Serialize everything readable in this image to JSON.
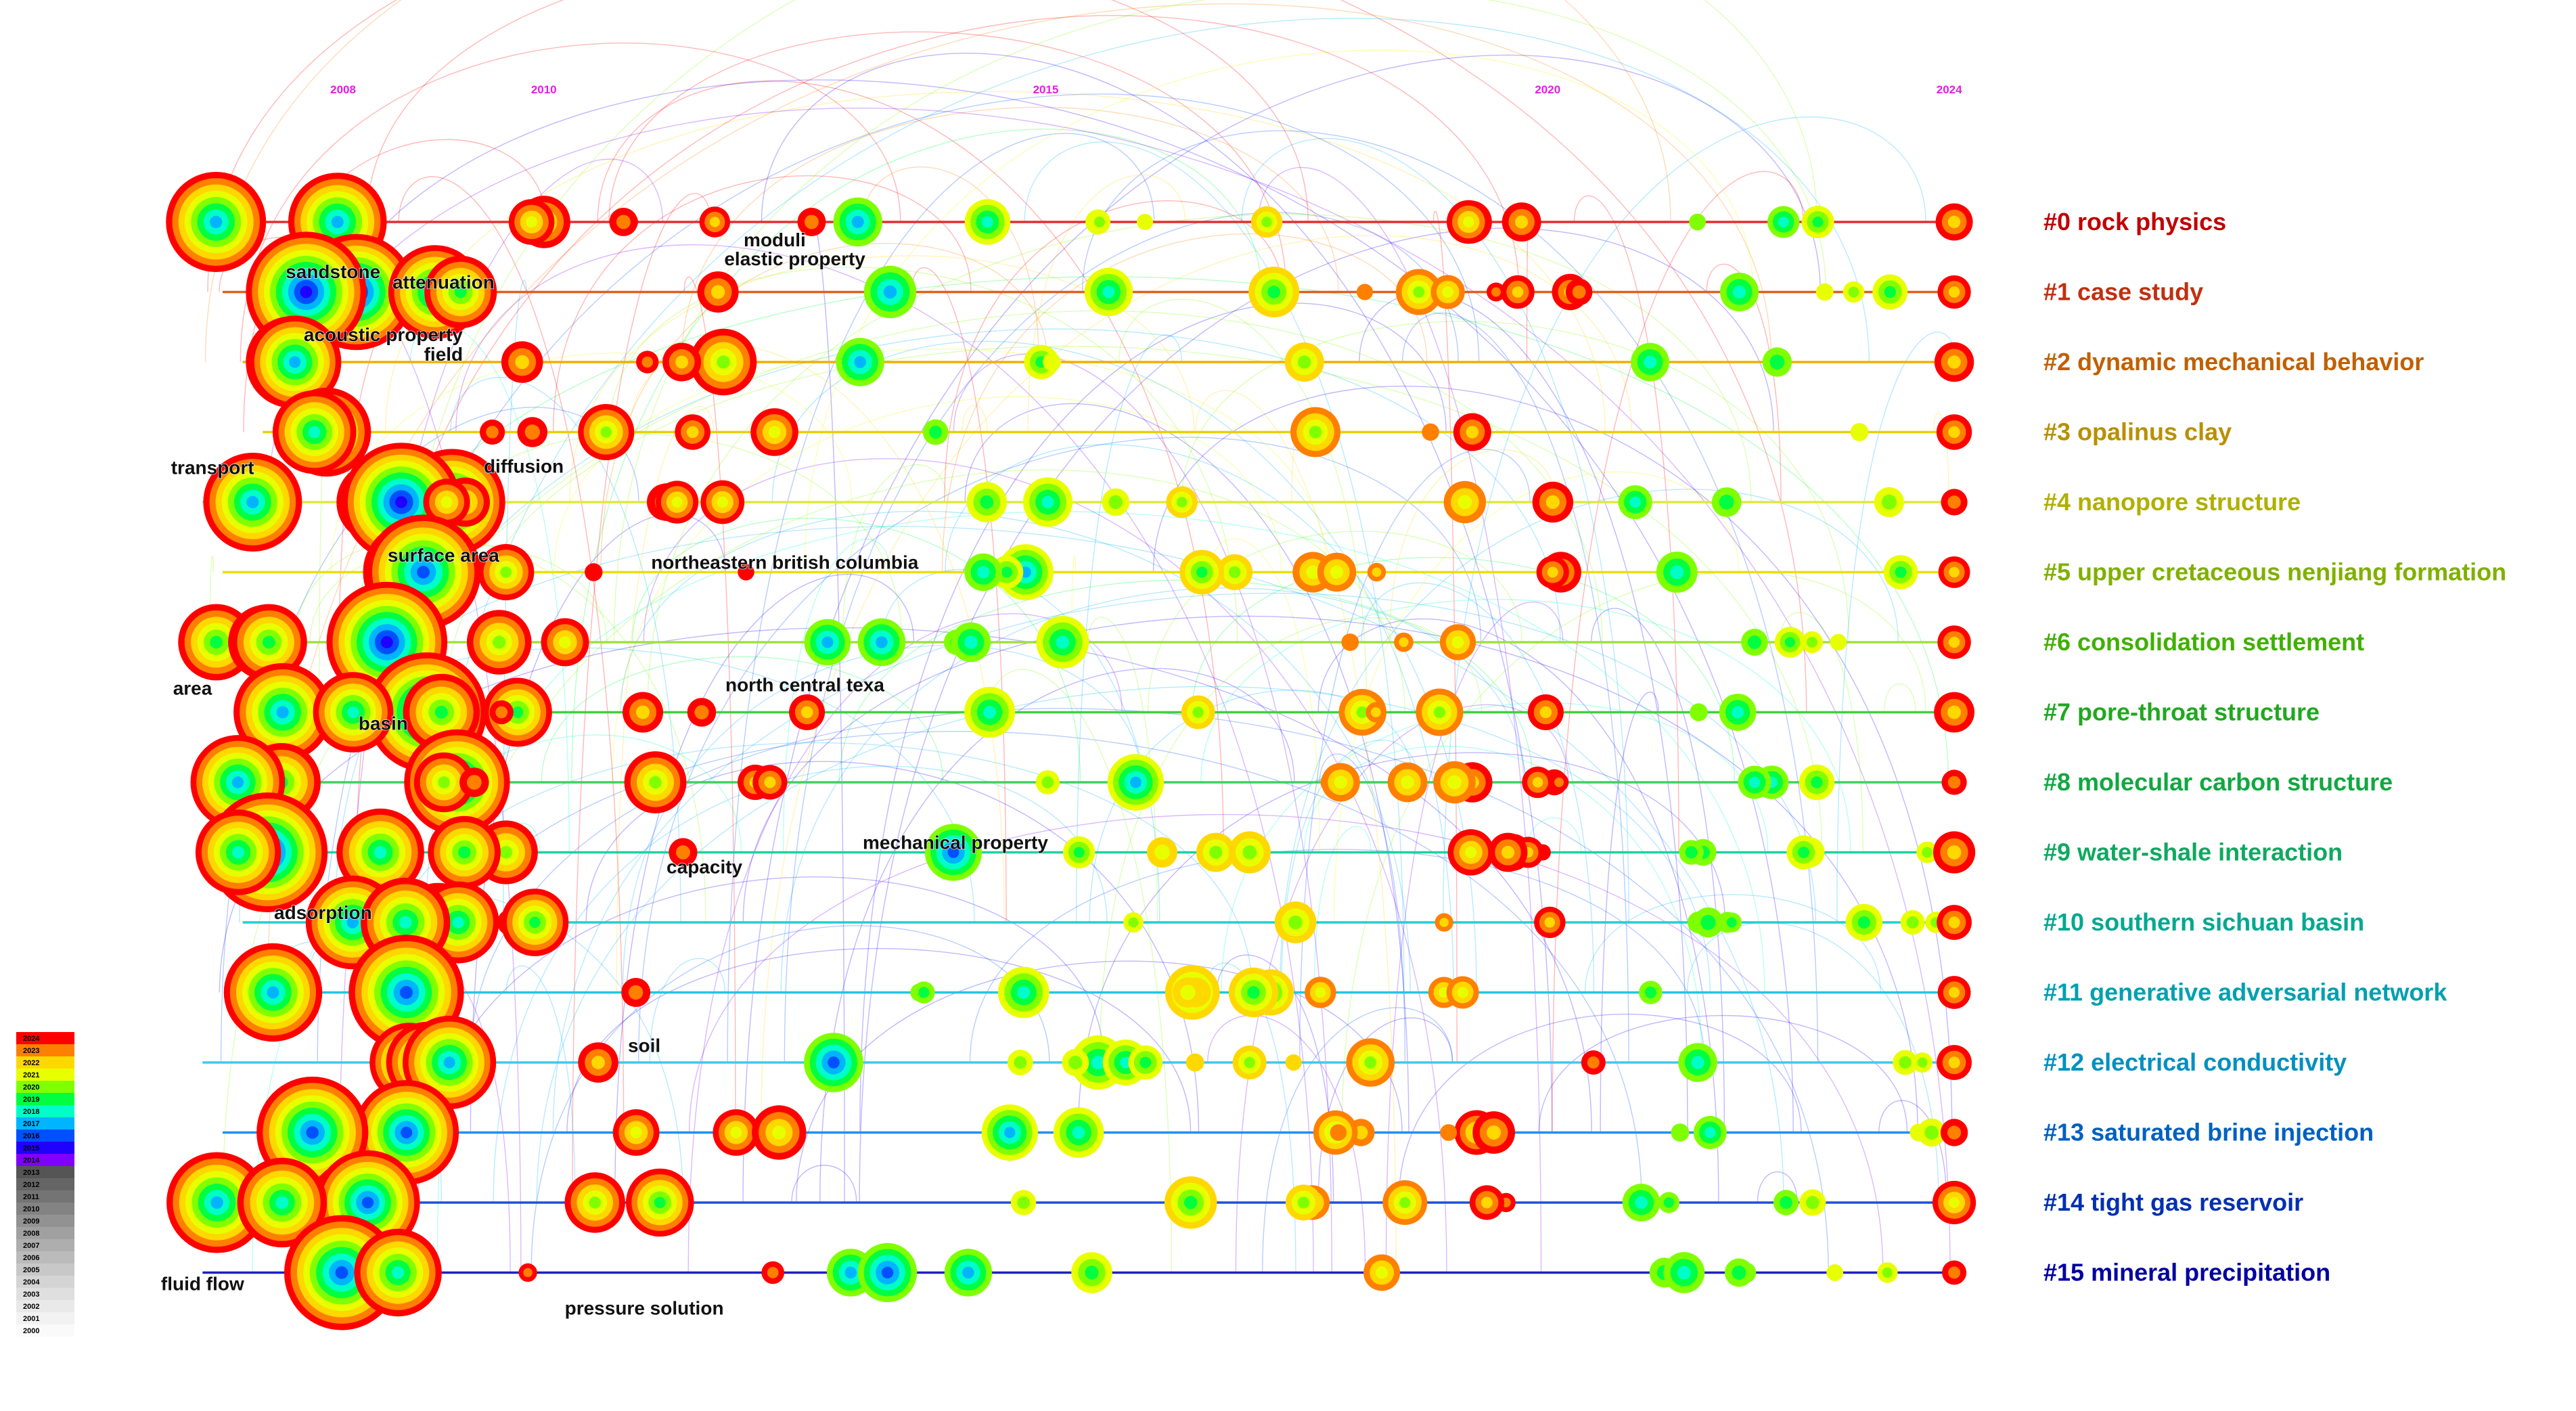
{
  "chart_data": {
    "type": "timeline",
    "years": [
      "2008",
      "2010",
      "2015",
      "2020",
      "2024"
    ],
    "xlim": [
      2006.2,
      2024.4
    ],
    "clusters": [
      {
        "id": "#0 rock physics",
        "color": "#c00000",
        "line": "#e03030"
      },
      {
        "id": "#1 case study",
        "color": "#c03010",
        "line": "#e06020"
      },
      {
        "id": "#2 dynamic mechanical behavior",
        "color": "#c06000",
        "line": "#f0b000"
      },
      {
        "id": "#3 opalinus clay",
        "color": "#b89000",
        "line": "#e8d000"
      },
      {
        "id": "#4 nanopore structure",
        "color": "#b0b000",
        "line": "#e0e840"
      },
      {
        "id": "#5 upper cretaceous nenjiang formation",
        "color": "#80b000",
        "line": "#e8e000"
      },
      {
        "id": "#6 consolidation settlement",
        "color": "#40b000",
        "line": "#a0e040"
      },
      {
        "id": "#7 pore-throat structure",
        "color": "#20a820",
        "line": "#40d040"
      },
      {
        "id": "#8 molecular carbon structure",
        "color": "#10a840",
        "line": "#40d060"
      },
      {
        "id": "#9 water-shale interaction",
        "color": "#10a860",
        "line": "#20d0a0"
      },
      {
        "id": "#10 southern sichuan basin",
        "color": "#00a890",
        "line": "#20d0d0"
      },
      {
        "id": "#11 generative adversarial network",
        "color": "#00a0b0",
        "line": "#20c8e0"
      },
      {
        "id": "#12 electrical conductivity",
        "color": "#0090c0",
        "line": "#40c8f0"
      },
      {
        "id": "#13 saturated brine injection",
        "color": "#0060c0",
        "line": "#2090f0"
      },
      {
        "id": "#14 tight gas reservoir",
        "color": "#0030b0",
        "line": "#2050e0"
      },
      {
        "id": "#15 mineral precipitation",
        "color": "#0000a0",
        "line": "#2020c0"
      }
    ],
    "keywords": [
      {
        "label": "sandstone",
        "year": 2007.9,
        "row": 0.8
      },
      {
        "label": "attenuation",
        "year": 2009.0,
        "row": 0.95
      },
      {
        "label": "moduli",
        "year": 2012.3,
        "row": 0.35
      },
      {
        "label": "elastic property",
        "year": 2012.5,
        "row": 0.62
      },
      {
        "label": "acoustic property",
        "year": 2008.4,
        "row": 1.7
      },
      {
        "label": "field",
        "year": 2009.0,
        "row": 1.98
      },
      {
        "label": "transport",
        "year": 2006.7,
        "row": 3.6
      },
      {
        "label": "diffusion",
        "year": 2009.8,
        "row": 3.58
      },
      {
        "label": "surface area",
        "year": 2009.0,
        "row": 4.85
      },
      {
        "label": "northeastern british columbia",
        "year": 2012.4,
        "row": 4.95
      },
      {
        "label": "area",
        "year": 2006.5,
        "row": 6.75
      },
      {
        "label": "north central texa",
        "year": 2012.6,
        "row": 6.7
      },
      {
        "label": "basin",
        "year": 2008.4,
        "row": 7.25
      },
      {
        "label": "mechanical property",
        "year": 2014.1,
        "row": 8.95
      },
      {
        "label": "capacity",
        "year": 2011.6,
        "row": 9.3
      },
      {
        "label": "adsorption",
        "year": 2007.8,
        "row": 9.95
      },
      {
        "label": "soil",
        "year": 2011.0,
        "row": 11.85
      },
      {
        "label": "fluid flow",
        "year": 2006.6,
        "row": 15.25
      },
      {
        "label": "pressure solution",
        "year": 2011.0,
        "row": 15.6
      }
    ],
    "legend": [
      "2024",
      "2023",
      "2022",
      "2021",
      "2020",
      "2019",
      "2018",
      "2017",
      "2016",
      "2015",
      "2014",
      "2013",
      "2012",
      "2011",
      "2010",
      "2009",
      "2008",
      "2007",
      "2006",
      "2005",
      "2004",
      "2003",
      "2002",
      "2001",
      "2000"
    ],
    "legend_colors": [
      "#ff0000",
      "#ff7f00",
      "#ffd800",
      "#e8ff00",
      "#80ff00",
      "#00ff40",
      "#00ffc8",
      "#00b4ff",
      "#0050ff",
      "#2000ff",
      "#8000ff",
      "#555555",
      "#656565",
      "#747474",
      "#838383",
      "#929292",
      "#a0a0a0",
      "#aeaeae",
      "#bbbbbb",
      "#c8c8c8",
      "#d4d4d4",
      "#dfdfdf",
      "#e9e9e9",
      "#f2f2f2",
      "#fafafa"
    ]
  }
}
